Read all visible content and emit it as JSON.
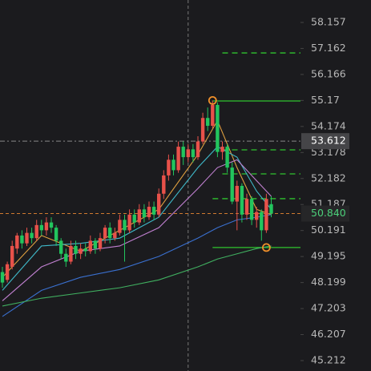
{
  "chart_data": {
    "type": "candlestick",
    "up_color": "#e8514a",
    "down_color": "#22c55e",
    "ylim": [
      44.813,
      59.016
    ],
    "yticks": [
      58.157,
      57.162,
      56.166,
      55.17,
      54.174,
      53.178,
      52.182,
      51.187,
      50.191,
      49.195,
      48.199,
      47.203,
      46.207,
      45.212
    ],
    "candles": [
      {
        "o": 48.6,
        "c": 48.2,
        "h": 48.8,
        "l": 48.0
      },
      {
        "o": 48.3,
        "c": 48.9,
        "h": 49.0,
        "l": 48.2
      },
      {
        "o": 48.8,
        "c": 49.6,
        "h": 49.8,
        "l": 48.7
      },
      {
        "o": 49.5,
        "c": 50.0,
        "h": 50.1,
        "l": 49.3
      },
      {
        "o": 50.0,
        "c": 49.7,
        "h": 50.2,
        "l": 49.5
      },
      {
        "o": 49.7,
        "c": 50.1,
        "h": 50.3,
        "l": 49.6
      },
      {
        "o": 50.1,
        "c": 49.9,
        "h": 50.3,
        "l": 49.7
      },
      {
        "o": 49.9,
        "c": 50.4,
        "h": 50.6,
        "l": 49.8
      },
      {
        "o": 50.4,
        "c": 50.2,
        "h": 50.6,
        "l": 50.0
      },
      {
        "o": 50.2,
        "c": 50.5,
        "h": 50.7,
        "l": 50.0
      },
      {
        "o": 50.5,
        "c": 50.3,
        "h": 50.7,
        "l": 50.1
      },
      {
        "o": 50.3,
        "c": 49.8,
        "h": 50.4,
        "l": 49.6
      },
      {
        "o": 49.8,
        "c": 49.3,
        "h": 49.9,
        "l": 49.1
      },
      {
        "o": 49.3,
        "c": 49.0,
        "h": 49.5,
        "l": 48.8
      },
      {
        "o": 49.0,
        "c": 49.6,
        "h": 49.8,
        "l": 48.9
      },
      {
        "o": 49.6,
        "c": 49.3,
        "h": 49.8,
        "l": 49.1
      },
      {
        "o": 49.3,
        "c": 49.5,
        "h": 49.7,
        "l": 49.1
      },
      {
        "o": 49.5,
        "c": 49.4,
        "h": 49.7,
        "l": 49.2
      },
      {
        "o": 49.4,
        "c": 49.8,
        "h": 50.0,
        "l": 49.3
      },
      {
        "o": 49.8,
        "c": 49.5,
        "h": 49.9,
        "l": 49.3
      },
      {
        "o": 49.5,
        "c": 49.9,
        "h": 50.1,
        "l": 49.4
      },
      {
        "o": 49.9,
        "c": 50.3,
        "h": 50.4,
        "l": 49.7
      },
      {
        "o": 50.3,
        "c": 49.9,
        "h": 50.5,
        "l": 49.7
      },
      {
        "o": 49.9,
        "c": 50.1,
        "h": 50.3,
        "l": 49.8
      },
      {
        "o": 50.1,
        "c": 50.6,
        "h": 50.8,
        "l": 50.0
      },
      {
        "o": 50.6,
        "c": 50.2,
        "h": 50.8,
        "l": 49.0
      },
      {
        "o": 50.2,
        "c": 50.8,
        "h": 51.0,
        "l": 50.1
      },
      {
        "o": 50.8,
        "c": 50.5,
        "h": 51.0,
        "l": 50.3
      },
      {
        "o": 50.5,
        "c": 51.0,
        "h": 51.2,
        "l": 50.4
      },
      {
        "o": 51.0,
        "c": 50.7,
        "h": 51.2,
        "l": 50.5
      },
      {
        "o": 50.7,
        "c": 51.1,
        "h": 51.3,
        "l": 50.6
      },
      {
        "o": 51.1,
        "c": 50.8,
        "h": 51.3,
        "l": 50.6
      },
      {
        "o": 50.8,
        "c": 51.6,
        "h": 51.8,
        "l": 50.7
      },
      {
        "o": 51.6,
        "c": 52.3,
        "h": 52.5,
        "l": 51.4
      },
      {
        "o": 52.3,
        "c": 52.9,
        "h": 53.1,
        "l": 52.1
      },
      {
        "o": 52.9,
        "c": 52.5,
        "h": 53.1,
        "l": 52.3
      },
      {
        "o": 52.5,
        "c": 53.4,
        "h": 53.6,
        "l": 52.4
      },
      {
        "o": 53.4,
        "c": 53.0,
        "h": 53.6,
        "l": 52.7
      },
      {
        "o": 53.0,
        "c": 53.3,
        "h": 53.5,
        "l": 52.8
      },
      {
        "o": 53.3,
        "c": 53.0,
        "h": 53.5,
        "l": 52.8
      },
      {
        "o": 53.0,
        "c": 53.6,
        "h": 53.8,
        "l": 52.9
      },
      {
        "o": 53.6,
        "c": 54.5,
        "h": 54.7,
        "l": 53.5
      },
      {
        "o": 54.5,
        "c": 54.2,
        "h": 54.9,
        "l": 54.0
      },
      {
        "o": 54.2,
        "c": 55.0,
        "h": 55.17,
        "l": 54.1
      },
      {
        "o": 55.0,
        "c": 53.2,
        "h": 55.1,
        "l": 53.0
      },
      {
        "o": 53.2,
        "c": 53.4,
        "h": 53.6,
        "l": 52.9
      },
      {
        "o": 53.4,
        "c": 52.6,
        "h": 53.5,
        "l": 52.4
      },
      {
        "o": 52.6,
        "c": 51.3,
        "h": 52.8,
        "l": 51.2
      },
      {
        "o": 51.3,
        "c": 51.9,
        "h": 52.1,
        "l": 50.2
      },
      {
        "o": 51.9,
        "c": 50.8,
        "h": 52.0,
        "l": 50.5
      },
      {
        "o": 50.8,
        "c": 51.4,
        "h": 51.6,
        "l": 50.6
      },
      {
        "o": 51.4,
        "c": 50.6,
        "h": 51.5,
        "l": 50.4
      },
      {
        "o": 50.6,
        "c": 50.9,
        "h": 51.1,
        "l": 50.3
      },
      {
        "o": 50.9,
        "c": 50.2,
        "h": 51.0,
        "l": 49.8
      },
      {
        "o": 50.2,
        "c": 51.4,
        "h": 51.6,
        "l": 50.1
      },
      {
        "o": 51.2,
        "c": 50.84,
        "h": 51.5,
        "l": 50.7
      }
    ],
    "series": [
      {
        "color": "#e0a040",
        "x": [
          0,
          8,
          16,
          24,
          32,
          40,
          44,
          48,
          52,
          55
        ],
        "values": [
          48.4,
          50.0,
          49.4,
          50.2,
          51.0,
          53.1,
          54.4,
          52.6,
          51.0,
          50.8
        ]
      },
      {
        "color": "#3fb8c8",
        "x": [
          0,
          8,
          16,
          24,
          32,
          40,
          44,
          48,
          52,
          55
        ],
        "values": [
          47.9,
          49.6,
          49.7,
          49.9,
          50.7,
          52.6,
          53.4,
          53.0,
          51.7,
          51.0
        ]
      },
      {
        "color": "#c080d0",
        "x": [
          0,
          8,
          16,
          24,
          32,
          40,
          44,
          48,
          52,
          55
        ],
        "values": [
          47.5,
          48.8,
          49.4,
          49.6,
          50.3,
          51.8,
          52.6,
          52.9,
          52.1,
          51.5
        ]
      },
      {
        "color": "#3a70d0",
        "x": [
          0,
          8,
          16,
          24,
          32,
          40,
          44,
          48,
          52,
          55
        ],
        "values": [
          46.9,
          47.9,
          48.4,
          48.7,
          49.2,
          49.9,
          50.3,
          50.6,
          50.7,
          50.8
        ]
      },
      {
        "color": "#40b060",
        "x": [
          0,
          8,
          16,
          24,
          32,
          40,
          44,
          48,
          52,
          55
        ],
        "values": [
          47.3,
          47.6,
          47.8,
          48.0,
          48.3,
          48.8,
          49.1,
          49.3,
          49.5,
          49.6
        ]
      }
    ],
    "levels": [
      {
        "value": 56.99,
        "style": "dashed",
        "from": 45
      },
      {
        "value": 55.15,
        "style": "solid",
        "from": 43
      },
      {
        "value": 53.28,
        "style": "dashed",
        "from": 45
      },
      {
        "value": 52.36,
        "style": "dashed",
        "from": 45
      },
      {
        "value": 51.41,
        "style": "dashed",
        "from": 43
      },
      {
        "value": 49.54,
        "style": "solid",
        "from": 43
      }
    ],
    "highlights": [
      {
        "index": 43,
        "price": 55.17
      },
      {
        "index": 54,
        "price": 49.54
      }
    ],
    "crosshair": {
      "index": 38,
      "price": 53.612
    },
    "last_price": 50.84
  }
}
